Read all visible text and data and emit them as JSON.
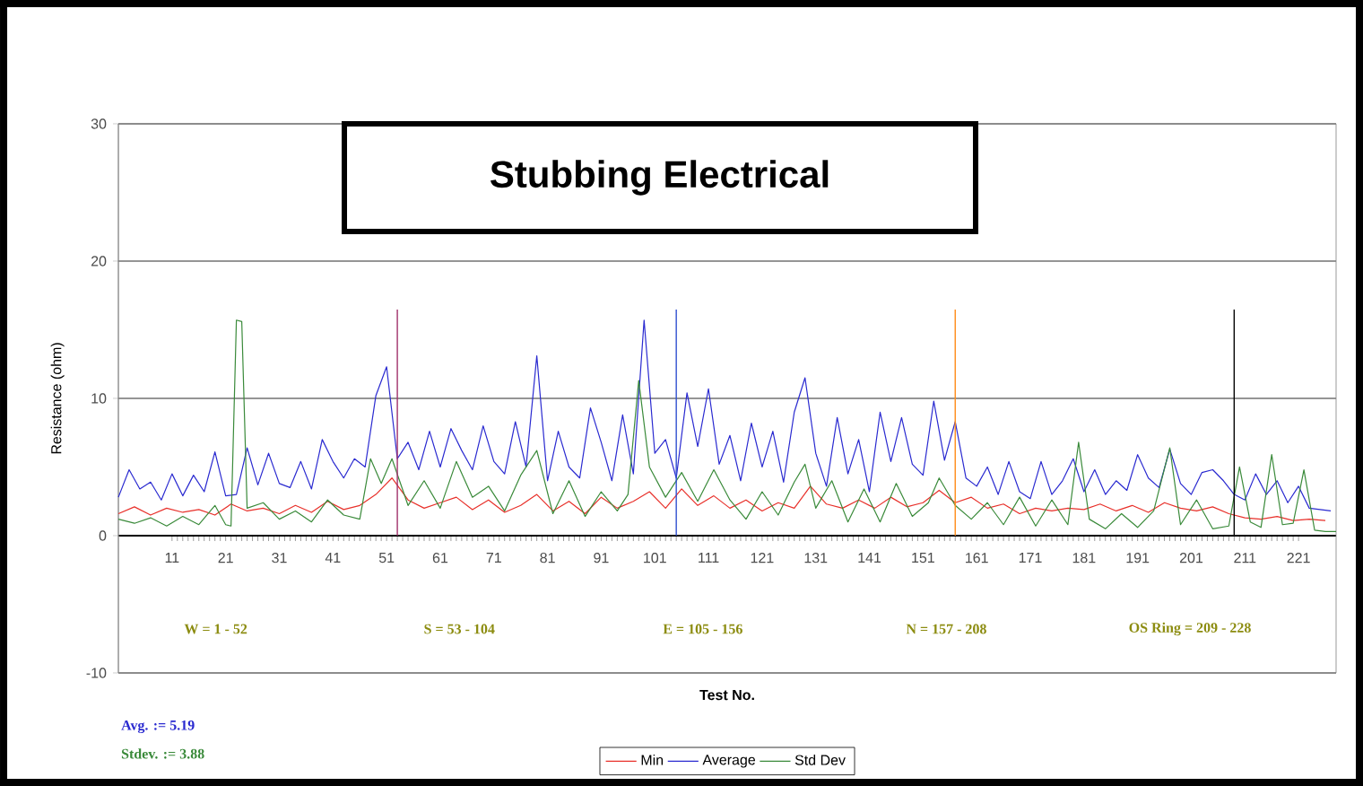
{
  "chart_data": {
    "type": "line",
    "title": "Stubbing Electrical",
    "xlabel": "Test No.",
    "ylabel": "Resistance (ohm)",
    "xlim": [
      1,
      228
    ],
    "ylim": [
      -10,
      30
    ],
    "xticks": [
      11,
      21,
      31,
      41,
      51,
      61,
      71,
      81,
      91,
      101,
      111,
      121,
      131,
      141,
      151,
      161,
      171,
      181,
      191,
      201,
      211,
      221
    ],
    "yticks": [
      -10,
      0,
      10,
      20,
      30
    ],
    "grid": "y",
    "legend": "bottom",
    "series": [
      {
        "name": "Min",
        "color": "#e8302a",
        "x": [
          1,
          4,
          7,
          10,
          13,
          16,
          19,
          22,
          25,
          28,
          31,
          34,
          37,
          40,
          43,
          46,
          49,
          52,
          55,
          58,
          61,
          64,
          67,
          70,
          73,
          76,
          79,
          82,
          85,
          88,
          91,
          94,
          97,
          100,
          103,
          106,
          109,
          112,
          115,
          118,
          121,
          124,
          127,
          130,
          133,
          136,
          139,
          142,
          145,
          148,
          151,
          154,
          157,
          160,
          163,
          166,
          169,
          172,
          175,
          178,
          181,
          184,
          187,
          190,
          193,
          196,
          199,
          202,
          205,
          208,
          211,
          214,
          217,
          220,
          223,
          226
        ],
        "values": [
          1.6,
          2.1,
          1.5,
          2.0,
          1.7,
          1.9,
          1.5,
          2.3,
          1.8,
          2.0,
          1.6,
          2.2,
          1.7,
          2.5,
          1.9,
          2.2,
          3.0,
          4.2,
          2.6,
          2.0,
          2.4,
          2.8,
          1.9,
          2.6,
          1.7,
          2.2,
          3.0,
          1.8,
          2.5,
          1.6,
          2.8,
          2.0,
          2.5,
          3.2,
          2.0,
          3.4,
          2.2,
          2.9,
          2.0,
          2.6,
          1.8,
          2.4,
          2.0,
          3.6,
          2.3,
          2.0,
          2.6,
          2.0,
          2.8,
          2.1,
          2.4,
          3.3,
          2.4,
          2.8,
          2.0,
          2.3,
          1.6,
          2.0,
          1.8,
          2.0,
          1.9,
          2.3,
          1.8,
          2.2,
          1.7,
          2.4,
          2.0,
          1.8,
          2.1,
          1.6,
          1.3,
          1.2,
          1.4,
          1.1,
          1.2,
          1.1
        ]
      },
      {
        "name": "Average",
        "color": "#2a2ad0",
        "x": [
          1,
          3,
          5,
          7,
          9,
          11,
          13,
          15,
          17,
          19,
          21,
          23,
          25,
          27,
          29,
          31,
          33,
          35,
          37,
          39,
          41,
          43,
          45,
          47,
          49,
          51,
          53,
          55,
          57,
          59,
          61,
          63,
          65,
          67,
          69,
          71,
          73,
          75,
          77,
          79,
          81,
          83,
          85,
          87,
          89,
          91,
          93,
          95,
          97,
          99,
          101,
          103,
          105,
          107,
          109,
          111,
          113,
          115,
          117,
          119,
          121,
          123,
          125,
          127,
          129,
          131,
          133,
          135,
          137,
          139,
          141,
          143,
          145,
          147,
          149,
          151,
          153,
          155,
          157,
          159,
          161,
          163,
          165,
          167,
          169,
          171,
          173,
          175,
          177,
          179,
          181,
          183,
          185,
          187,
          189,
          191,
          193,
          195,
          197,
          199,
          201,
          203,
          205,
          207,
          209,
          211,
          213,
          215,
          217,
          219,
          221,
          223,
          225,
          227
        ],
        "values": [
          2.8,
          4.8,
          3.4,
          3.9,
          2.6,
          4.5,
          2.9,
          4.4,
          3.2,
          6.1,
          2.9,
          3.0,
          6.4,
          3.7,
          6.0,
          3.8,
          3.5,
          5.4,
          3.4,
          7.0,
          5.4,
          4.2,
          5.6,
          5.0,
          10.2,
          12.3,
          5.6,
          6.8,
          4.8,
          7.6,
          5.0,
          7.8,
          6.2,
          4.8,
          8.0,
          5.4,
          4.5,
          8.3,
          5.0,
          13.1,
          4.0,
          7.6,
          5.0,
          4.2,
          9.3,
          6.8,
          4.0,
          8.8,
          4.5,
          15.7,
          6.0,
          7.0,
          4.2,
          10.4,
          6.5,
          10.7,
          5.2,
          7.3,
          4.0,
          8.2,
          5.0,
          7.6,
          3.9,
          9.0,
          11.5,
          6.0,
          3.6,
          8.6,
          4.5,
          7.0,
          3.2,
          9.0,
          5.4,
          8.6,
          5.2,
          4.4,
          9.8,
          5.5,
          8.3,
          4.2,
          3.6,
          5.0,
          3.0,
          5.4,
          3.2,
          2.7,
          5.4,
          3.0,
          4.0,
          5.6,
          3.2,
          4.8,
          3.0,
          4.0,
          3.3,
          5.9,
          4.2,
          3.5,
          6.3,
          3.8,
          3.0,
          4.6,
          4.8,
          4.0,
          3.0,
          2.6,
          4.5,
          3.0,
          4.0,
          2.4,
          3.6,
          2.0,
          1.9,
          1.8
        ]
      },
      {
        "name": "Std Dev",
        "color": "#3a8a3a",
        "x": [
          1,
          4,
          7,
          10,
          13,
          16,
          19,
          21,
          22,
          23,
          24,
          25,
          28,
          31,
          34,
          37,
          40,
          43,
          46,
          48,
          50,
          52,
          55,
          58,
          61,
          64,
          67,
          70,
          73,
          76,
          79,
          82,
          85,
          88,
          91,
          94,
          96,
          98,
          100,
          103,
          106,
          109,
          112,
          115,
          118,
          121,
          124,
          127,
          129,
          131,
          134,
          137,
          140,
          143,
          146,
          149,
          152,
          154,
          157,
          160,
          163,
          166,
          169,
          172,
          175,
          178,
          180,
          182,
          185,
          188,
          191,
          194,
          197,
          199,
          202,
          205,
          208,
          210,
          212,
          214,
          216,
          218,
          220,
          222,
          224,
          226,
          228
        ],
        "values": [
          1.2,
          0.9,
          1.3,
          0.7,
          1.4,
          0.8,
          2.2,
          0.8,
          0.7,
          15.7,
          15.6,
          2.0,
          2.4,
          1.2,
          1.8,
          1.0,
          2.6,
          1.5,
          1.2,
          5.6,
          3.8,
          5.6,
          2.2,
          4.0,
          2.0,
          5.4,
          2.8,
          3.6,
          1.8,
          4.4,
          6.2,
          1.6,
          4.0,
          1.4,
          3.2,
          1.8,
          3.0,
          11.3,
          5.0,
          2.8,
          4.6,
          2.5,
          4.8,
          2.6,
          1.2,
          3.2,
          1.5,
          3.9,
          5.2,
          2.0,
          4.0,
          1.0,
          3.4,
          1.0,
          3.8,
          1.4,
          2.4,
          4.2,
          2.2,
          1.2,
          2.4,
          0.8,
          2.8,
          0.7,
          2.6,
          0.8,
          6.8,
          1.2,
          0.5,
          1.6,
          0.6,
          1.8,
          6.4,
          0.8,
          2.6,
          0.5,
          0.7,
          5.0,
          1.0,
          0.6,
          5.9,
          0.8,
          0.9,
          4.8,
          0.4,
          0.3,
          0.3
        ]
      }
    ],
    "ref_lines": [
      {
        "axis": "x",
        "value": 53,
        "color": "#a0306a"
      },
      {
        "axis": "x",
        "value": 105,
        "color": "#3050d0"
      },
      {
        "axis": "x",
        "value": 157,
        "color": "#ff8c1a"
      },
      {
        "axis": "x",
        "value": 209,
        "color": "#000000"
      }
    ],
    "annotations": [
      "W = 1 - 52",
      "S = 53 - 104",
      "E = 105 - 156",
      "N = 157 - 208",
      "OS Ring = 209 - 228",
      "Avg.   := 5.19",
      "Stdev. := 3.88"
    ]
  }
}
